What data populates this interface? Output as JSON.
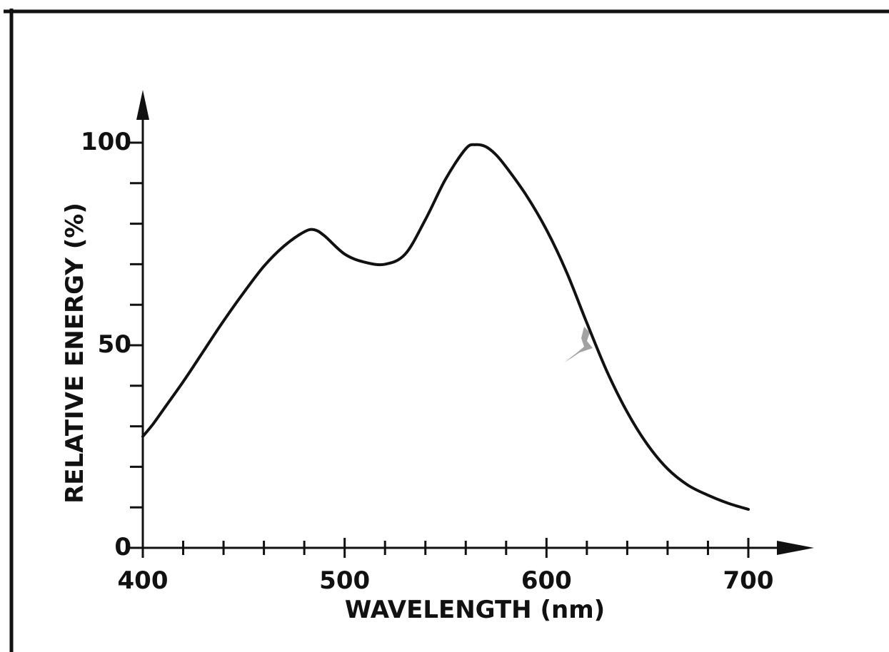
{
  "chart_data": {
    "type": "line",
    "title": "",
    "xlabel": "WAVELENGTH (nm)",
    "ylabel": "RELATIVE ENERGY (%)",
    "xlim": [
      400,
      730
    ],
    "ylim": [
      0,
      108
    ],
    "x_ticks": [
      400,
      420,
      440,
      460,
      480,
      500,
      520,
      540,
      560,
      580,
      600,
      620,
      640,
      660,
      680,
      700
    ],
    "x_tick_labels": [
      "400",
      "500",
      "600",
      "700"
    ],
    "y_ticks": [
      0,
      10,
      20,
      30,
      40,
      50,
      60,
      70,
      80,
      90,
      100
    ],
    "y_tick_labels": [
      "0",
      "50",
      "100"
    ],
    "grid": false,
    "series": [
      {
        "x": [
          400,
          405,
          410,
          420,
          430,
          440,
          450,
          460,
          470,
          480,
          485,
          490,
          500,
          510,
          520,
          530,
          540,
          550,
          560,
          565,
          570,
          575,
          580,
          590,
          600,
          610,
          620,
          630,
          640,
          650,
          660,
          670,
          680,
          690,
          700
        ],
        "values": [
          27.5,
          30.5,
          34,
          41,
          48.5,
          56,
          63,
          69.5,
          74.5,
          78,
          78.5,
          77,
          72.5,
          70.5,
          70,
          72.5,
          81,
          91,
          98.5,
          99.5,
          99,
          97,
          94,
          87,
          78.5,
          68,
          55.5,
          43.5,
          33.5,
          25.5,
          19.5,
          15.5,
          13,
          11,
          9.5
        ]
      }
    ]
  }
}
